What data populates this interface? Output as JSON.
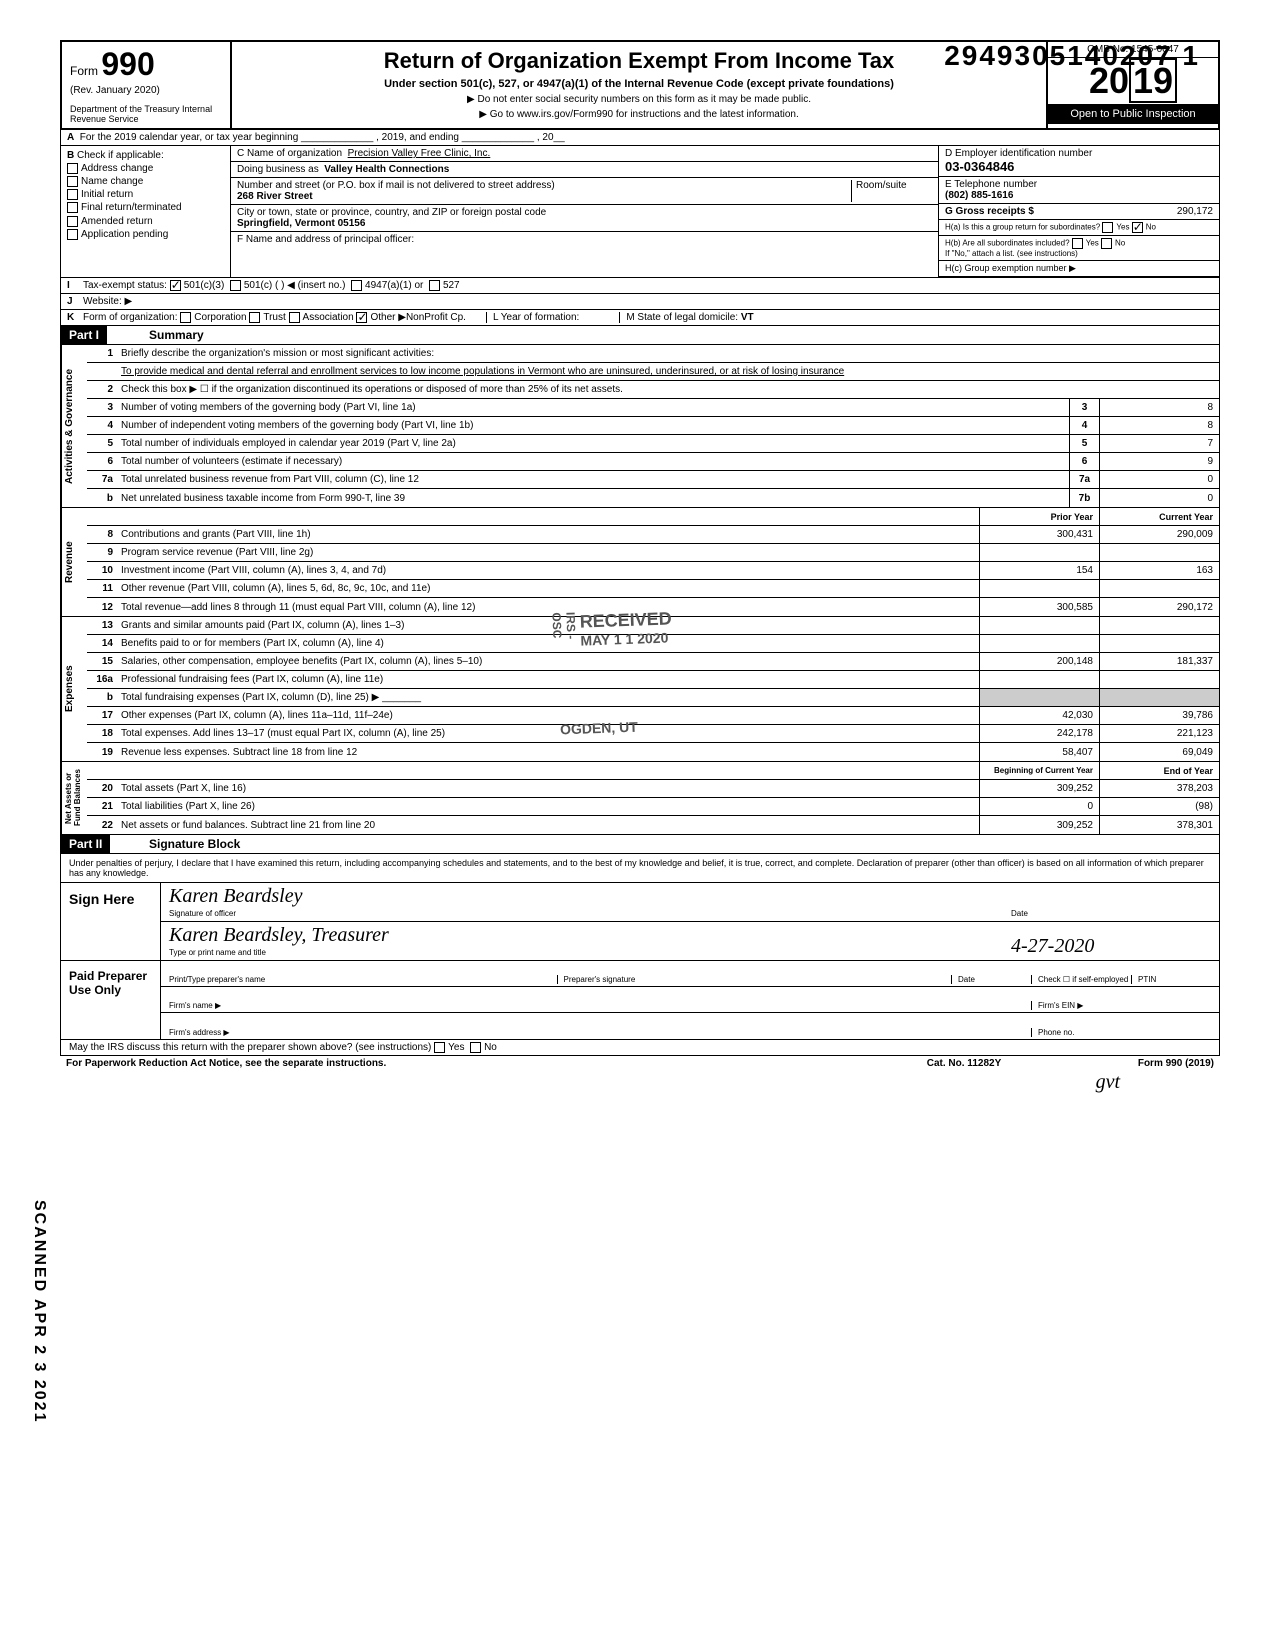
{
  "dln": "2949305140207 1",
  "form": {
    "number": "990",
    "rev": "(Rev. January 2020)",
    "dept": "Department of the Treasury\nInternal Revenue Service",
    "title": "Return of Organization Exempt From Income Tax",
    "subtitle": "Under section 501(c), 527, or 4947(a)(1) of the Internal Revenue Code (except private foundations)",
    "note1": "▶ Do not enter social security numbers on this form as it may be made public.",
    "note2": "▶ Go to www.irs.gov/Form990 for instructions and the latest information.",
    "omb": "OMB No. 1545-0047",
    "year": "2019",
    "open": "Open to Public Inspection"
  },
  "rowA": "For the 2019 calendar year, or tax year beginning _____________ , 2019, and ending _____________ , 20__",
  "sectionB": {
    "header": "Check if applicable:",
    "items": [
      "Address change",
      "Name change",
      "Initial return",
      "Final return/terminated",
      "Amended return",
      "Application pending"
    ]
  },
  "sectionC": {
    "name_label": "C Name of organization",
    "name": "Precision Valley Free Clinic, Inc.",
    "dba_label": "Doing business as",
    "dba": "Valley Health Connections",
    "street_label": "Number and street (or P.O. box if mail is not delivered to street address)",
    "street": "268 River Street",
    "room_label": "Room/suite",
    "city_label": "City or town, state or province, country, and ZIP or foreign postal code",
    "city": "Springfield, Vermont  05156",
    "officer_label": "F Name and address of principal officer:"
  },
  "sectionD": {
    "ein_label": "D Employer identification number",
    "ein": "03-0364846",
    "tel_label": "E Telephone number",
    "tel": "(802) 885-1616",
    "gross_label": "G Gross receipts $",
    "gross": "290,172",
    "h_a": "H(a) Is this a group return for subordinates?",
    "h_a_no_checked": true,
    "h_b": "H(b) Are all subordinates included?",
    "h_b_note": "If \"No,\" attach a list. (see instructions)",
    "h_c": "H(c) Group exemption number ▶"
  },
  "rowI": {
    "label": "Tax-exempt status:",
    "c501c3_checked": true,
    "opts": [
      "501(c)(3)",
      "501(c) (   ) ◀ (insert no.)",
      "4947(a)(1) or",
      "527"
    ]
  },
  "rowJ": "Website: ▶",
  "rowK": {
    "label": "Form of organization:",
    "opts": [
      "Corporation",
      "Trust",
      "Association",
      "Other ▶"
    ],
    "other_checked": true,
    "other_text": "NonProfit Cp.",
    "l": "L Year of formation:",
    "m": "M State of legal domicile:",
    "m_val": "VT"
  },
  "part1": {
    "title": "Summary",
    "line1_label": "Briefly describe the organization's mission or most significant activities:",
    "line1_text": "To provide medical and dental referral and enrollment services to low income populations in Vermont who are uninsured, underinsured, or at risk of losing insurance",
    "line2": "Check this box ▶ ☐ if the organization discontinued its operations or disposed of more than 25% of its net assets.",
    "govRows": [
      {
        "n": "3",
        "d": "Number of voting members of the governing body (Part VI, line 1a)",
        "c": "3",
        "v": "8"
      },
      {
        "n": "4",
        "d": "Number of independent voting members of the governing body (Part VI, line 1b)",
        "c": "4",
        "v": "8"
      },
      {
        "n": "5",
        "d": "Total number of individuals employed in calendar year 2019 (Part V, line 2a)",
        "c": "5",
        "v": "7"
      },
      {
        "n": "6",
        "d": "Total number of volunteers (estimate if necessary)",
        "c": "6",
        "v": "9"
      },
      {
        "n": "7a",
        "d": "Total unrelated business revenue from Part VIII, column (C), line 12",
        "c": "7a",
        "v": "0"
      },
      {
        "n": "b",
        "d": "Net unrelated business taxable income from Form 990-T, line 39",
        "c": "7b",
        "v": "0"
      }
    ],
    "colHdr1": "Prior Year",
    "colHdr2": "Current Year",
    "revRows": [
      {
        "n": "8",
        "d": "Contributions and grants (Part VIII, line 1h)",
        "p": "300,431",
        "c": "290,009"
      },
      {
        "n": "9",
        "d": "Program service revenue (Part VIII, line 2g)",
        "p": "",
        "c": ""
      },
      {
        "n": "10",
        "d": "Investment income (Part VIII, column (A), lines 3, 4, and 7d)",
        "p": "154",
        "c": "163"
      },
      {
        "n": "11",
        "d": "Other revenue (Part VIII, column (A), lines 5, 6d, 8c, 9c, 10c, and 11e)",
        "p": "",
        "c": ""
      },
      {
        "n": "12",
        "d": "Total revenue—add lines 8 through 11 (must equal Part VIII, column (A), line 12)",
        "p": "300,585",
        "c": "290,172"
      }
    ],
    "expRows": [
      {
        "n": "13",
        "d": "Grants and similar amounts paid (Part IX, column (A), lines 1–3)",
        "p": "",
        "c": ""
      },
      {
        "n": "14",
        "d": "Benefits paid to or for members (Part IX, column (A), line 4)",
        "p": "",
        "c": ""
      },
      {
        "n": "15",
        "d": "Salaries, other compensation, employee benefits (Part IX, column (A), lines 5–10)",
        "p": "200,148",
        "c": "181,337"
      },
      {
        "n": "16a",
        "d": "Professional fundraising fees (Part IX, column (A), line 11e)",
        "p": "",
        "c": ""
      },
      {
        "n": "b",
        "d": "Total fundraising expenses (Part IX, column (D), line 25) ▶ _______",
        "p": "",
        "c": "",
        "shade": true
      },
      {
        "n": "17",
        "d": "Other expenses (Part IX, column (A), lines 11a–11d, 11f–24e)",
        "p": "42,030",
        "c": "39,786"
      },
      {
        "n": "18",
        "d": "Total expenses. Add lines 13–17 (must equal Part IX, column (A), line 25)",
        "p": "242,178",
        "c": "221,123"
      },
      {
        "n": "19",
        "d": "Revenue less expenses. Subtract line 18 from line 12",
        "p": "58,407",
        "c": "69,049"
      }
    ],
    "balHdr1": "Beginning of Current Year",
    "balHdr2": "End of Year",
    "balRows": [
      {
        "n": "20",
        "d": "Total assets (Part X, line 16)",
        "p": "309,252",
        "c": "378,203"
      },
      {
        "n": "21",
        "d": "Total liabilities (Part X, line 26)",
        "p": "0",
        "c": "(98)"
      },
      {
        "n": "22",
        "d": "Net assets or fund balances. Subtract line 21 from line 20",
        "p": "309,252",
        "c": "378,301"
      }
    ]
  },
  "part2": {
    "title": "Signature Block",
    "decl": "Under penalties of perjury, I declare that I have examined this return, including accompanying schedules and statements, and to the best of my knowledge and belief, it is true, correct, and complete. Declaration of preparer (other than officer) is based on all information of which preparer has any knowledge.",
    "sign_here": "Sign Here",
    "sig_script": "Karen Beardsley",
    "sig_cap": "Signature of officer",
    "name_script": "Karen Beardsley,  Treasurer",
    "name_cap": "Type or print name and title",
    "date_label": "Date",
    "date": "4-27-2020",
    "paid": "Paid Preparer Use Only",
    "prep_name": "Print/Type preparer's name",
    "prep_sig": "Preparer's signature",
    "prep_date": "Date",
    "prep_check": "Check ☐ if self-employed",
    "ptin": "PTIN",
    "firm_name": "Firm's name ▶",
    "firm_ein": "Firm's EIN ▶",
    "firm_addr": "Firm's address ▶",
    "phone": "Phone no.",
    "discuss": "May the IRS discuss this return with the preparer shown above? (see instructions)",
    "yes": "Yes",
    "no": "No"
  },
  "footer": {
    "left": "For Paperwork Reduction Act Notice, see the separate instructions.",
    "mid": "Cat. No. 11282Y",
    "right": "Form 990 (2019)"
  },
  "stamps": {
    "scanned": "SCANNED  APR 2 3 2021",
    "received": "RECEIVED",
    "received_date": "MAY 1 1 2020",
    "received_by": "IRS - OSC",
    "ogden": "OGDEN, UT"
  },
  "initials": "gvt"
}
